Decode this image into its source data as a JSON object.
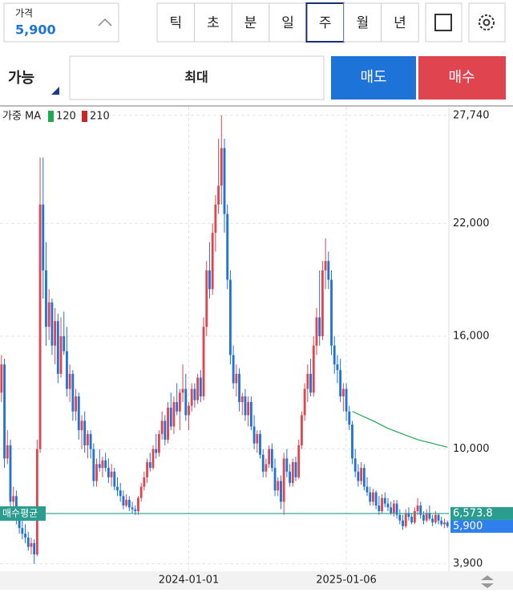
{
  "header": {
    "price_label": "가격",
    "price": "5,900",
    "periods": [
      "틱",
      "초",
      "분",
      "일",
      "주",
      "월",
      "년"
    ],
    "selected_period_index": 4
  },
  "order_bar": {
    "available": "가능",
    "quantity": "최대",
    "sell": "매도",
    "buy": "매수"
  },
  "chart_data": {
    "type": "candlestick",
    "legend_title": "가중 MA",
    "candle_colors": {
      "up": "#e0454f",
      "down": "#1e73d8"
    },
    "ohlc": [
      [
        13000,
        15000,
        12500,
        14500
      ],
      [
        14500,
        14800,
        9000,
        9500
      ],
      [
        9500,
        11000,
        9200,
        10200
      ],
      [
        10200,
        10500,
        6800,
        7200
      ],
      [
        7200,
        8000,
        6500,
        7500
      ],
      [
        7500,
        7800,
        6000,
        6300
      ],
      [
        6300,
        6800,
        5500,
        5800
      ],
      [
        5800,
        6200,
        5200,
        5500
      ],
      [
        5500,
        6000,
        5000,
        5300
      ],
      [
        5300,
        5600,
        4600,
        4800
      ],
      [
        4800,
        5300,
        4400,
        5000
      ],
      [
        5000,
        5200,
        3900,
        4400
      ],
      [
        4400,
        10500,
        4300,
        10000
      ],
      [
        10000,
        25500,
        9800,
        23000
      ],
      [
        23000,
        25500,
        18000,
        19500
      ],
      [
        19500,
        21000,
        15500,
        16500
      ],
      [
        16500,
        18500,
        15800,
        17800
      ],
      [
        17800,
        18000,
        15000,
        15500
      ],
      [
        15500,
        17500,
        14500,
        16800
      ],
      [
        16800,
        17200,
        13500,
        14000
      ],
      [
        14000,
        17000,
        13800,
        16000
      ],
      [
        16000,
        17300,
        15000,
        15200
      ],
      [
        15200,
        16500,
        12800,
        13200
      ],
      [
        13200,
        14500,
        12500,
        14000
      ],
      [
        14000,
        14200,
        11500,
        12000
      ],
      [
        12000,
        13200,
        11500,
        12800
      ],
      [
        12800,
        13000,
        10500,
        11000
      ],
      [
        11000,
        11800,
        10000,
        11500
      ],
      [
        11500,
        12000,
        9800,
        10200
      ],
      [
        10200,
        11000,
        9500,
        10800
      ],
      [
        10800,
        11000,
        9500,
        10000
      ],
      [
        10000,
        10300,
        8000,
        8300
      ],
      [
        8300,
        9500,
        8000,
        9200
      ],
      [
        9200,
        10000,
        8800,
        9000
      ],
      [
        9000,
        9600,
        8500,
        9400
      ],
      [
        9400,
        9800,
        8800,
        9000
      ],
      [
        9000,
        9500,
        8200,
        8500
      ],
      [
        8500,
        9200,
        8000,
        8800
      ],
      [
        8800,
        9000,
        7800,
        8000
      ],
      [
        8000,
        8500,
        7500,
        7800
      ],
      [
        7800,
        8200,
        7200,
        7500
      ],
      [
        7500,
        7800,
        6800,
        7000
      ],
      [
        7000,
        7600,
        6900,
        7300
      ],
      [
        7300,
        7500,
        6700,
        6900
      ],
      [
        6900,
        7200,
        6600,
        6800
      ],
      [
        6800,
        7000,
        6500,
        6700
      ],
      [
        6700,
        7500,
        6500,
        7400
      ],
      [
        7400,
        8200,
        7200,
        8000
      ],
      [
        8000,
        8800,
        7800,
        8500
      ],
      [
        8500,
        9500,
        8200,
        9300
      ],
      [
        9300,
        9800,
        8800,
        9000
      ],
      [
        9000,
        10200,
        8900,
        10000
      ],
      [
        10000,
        10800,
        9500,
        9800
      ],
      [
        9800,
        11000,
        9600,
        10800
      ],
      [
        10800,
        12000,
        10500,
        11500
      ],
      [
        11500,
        11800,
        10200,
        10500
      ],
      [
        10500,
        12500,
        10300,
        12200
      ],
      [
        12200,
        13000,
        11000,
        11200
      ],
      [
        11200,
        12800,
        10800,
        12500
      ],
      [
        12500,
        13500,
        11800,
        12000
      ],
      [
        12000,
        13200,
        11000,
        13000
      ],
      [
        13000,
        14500,
        12500,
        13200
      ],
      [
        13200,
        14000,
        11500,
        11800
      ],
      [
        11800,
        12500,
        11000,
        12300
      ],
      [
        12300,
        13500,
        12000,
        13200
      ],
      [
        13200,
        13500,
        12200,
        12600
      ],
      [
        12600,
        14000,
        12400,
        13800
      ],
      [
        13800,
        14200,
        12500,
        12800
      ],
      [
        12800,
        17000,
        12600,
        16500
      ],
      [
        16500,
        20000,
        16000,
        19500
      ],
      [
        19500,
        21000,
        18000,
        18500
      ],
      [
        18500,
        22000,
        18200,
        21500
      ],
      [
        21500,
        23500,
        20500,
        23000
      ],
      [
        23000,
        26500,
        22500,
        24000
      ],
      [
        24000,
        27740,
        23000,
        26000
      ],
      [
        26000,
        26500,
        21500,
        22500
      ],
      [
        22500,
        23000,
        18500,
        19000
      ],
      [
        19000,
        19500,
        14500,
        15000
      ],
      [
        15000,
        15500,
        13200,
        13500
      ],
      [
        13500,
        14500,
        12800,
        14000
      ],
      [
        14000,
        14300,
        12000,
        12500
      ],
      [
        12500,
        13000,
        11800,
        12800
      ],
      [
        12800,
        13200,
        11500,
        11800
      ],
      [
        11800,
        12800,
        11200,
        12500
      ],
      [
        12500,
        12800,
        11000,
        11200
      ],
      [
        11200,
        11800,
        10000,
        10300
      ],
      [
        10300,
        11000,
        9800,
        10800
      ],
      [
        10800,
        11000,
        9500,
        9700
      ],
      [
        9700,
        10000,
        8500,
        8800
      ],
      [
        8800,
        9500,
        8500,
        9200
      ],
      [
        9200,
        10200,
        9000,
        10000
      ],
      [
        10000,
        10300,
        8800,
        9000
      ],
      [
        9000,
        9500,
        7500,
        7800
      ],
      [
        7800,
        8500,
        7500,
        8300
      ],
      [
        8300,
        8600,
        6800,
        7200
      ],
      [
        7200,
        9800,
        6500,
        9500
      ],
      [
        9500,
        10000,
        8500,
        8800
      ],
      [
        8800,
        9200,
        8000,
        8200
      ],
      [
        8200,
        9500,
        8000,
        9300
      ],
      [
        9300,
        9600,
        8300,
        8500
      ],
      [
        8500,
        10500,
        8400,
        10200
      ],
      [
        10200,
        12000,
        10000,
        11800
      ],
      [
        11800,
        13500,
        11500,
        13200
      ],
      [
        13200,
        14500,
        12500,
        14000
      ],
      [
        14000,
        14800,
        12800,
        13000
      ],
      [
        13000,
        16000,
        12800,
        15500
      ],
      [
        15500,
        17500,
        15000,
        17000
      ],
      [
        17000,
        19500,
        15500,
        16000
      ],
      [
        16000,
        20000,
        15800,
        19500
      ],
      [
        19500,
        21200,
        18500,
        20000
      ],
      [
        20000,
        20500,
        18500,
        19000
      ],
      [
        19000,
        19500,
        15000,
        15500
      ],
      [
        15500,
        16000,
        14000,
        14500
      ],
      [
        14500,
        15000,
        13500,
        14200
      ],
      [
        14200,
        14800,
        12500,
        12800
      ],
      [
        12800,
        13500,
        12000,
        13200
      ],
      [
        13200,
        13500,
        11500,
        12000
      ],
      [
        12000,
        12300,
        11000,
        11300
      ],
      [
        11300,
        11500,
        9200,
        9500
      ],
      [
        9500,
        10000,
        8500,
        8800
      ],
      [
        8800,
        9200,
        8000,
        8300
      ],
      [
        8300,
        9300,
        8100,
        9000
      ],
      [
        9000,
        9200,
        7800,
        8000
      ],
      [
        8000,
        8500,
        7500,
        7700
      ],
      [
        7700,
        8000,
        7000,
        7200
      ],
      [
        7200,
        7900,
        7000,
        7700
      ],
      [
        7700,
        7800,
        6800,
        7000
      ],
      [
        7000,
        7500,
        6500,
        6700
      ],
      [
        6700,
        7600,
        6600,
        7400
      ],
      [
        7400,
        7700,
        6900,
        7100
      ],
      [
        7100,
        7400,
        6700,
        6900
      ],
      [
        6900,
        7200,
        6500,
        6600
      ],
      [
        6600,
        7300,
        6400,
        7100
      ],
      [
        7100,
        7300,
        6300,
        6500
      ],
      [
        6500,
        6800,
        6000,
        6200
      ],
      [
        6200,
        6500,
        5700,
        5900
      ],
      [
        5900,
        6800,
        5800,
        6600
      ],
      [
        6600,
        6900,
        6200,
        6400
      ],
      [
        6400,
        6600,
        6000,
        6100
      ],
      [
        6100,
        6900,
        6000,
        6700
      ],
      [
        6700,
        7400,
        6500,
        7000
      ],
      [
        7000,
        7200,
        6300,
        6500
      ],
      [
        6500,
        6700,
        6000,
        6200
      ],
      [
        6200,
        6800,
        6100,
        6600
      ],
      [
        6600,
        7000,
        6200,
        6300
      ],
      [
        6300,
        6500,
        5900,
        6100
      ],
      [
        6100,
        6700,
        6000,
        6500
      ],
      [
        6500,
        6600,
        6000,
        6200
      ],
      [
        6200,
        6400,
        5900,
        6000
      ],
      [
        6000,
        6300,
        5800,
        6100
      ],
      [
        6100,
        6200,
        5800,
        5900
      ]
    ],
    "ma_series": [
      {
        "name": "120",
        "color": "#1fa84f",
        "x": [
          118,
          125,
          130,
          135,
          140,
          145,
          150
        ],
        "values": [
          12000,
          11500,
          11100,
          10800,
          10500,
          10300,
          10100
        ]
      },
      {
        "name": "210",
        "color": "#c62828"
      }
    ],
    "ylim": [
      3500,
      28200
    ],
    "yticks": [
      {
        "value": 3900,
        "label": "3,900"
      },
      {
        "value": 10000,
        "label": "10,000"
      },
      {
        "value": 16000,
        "label": "16,000"
      },
      {
        "value": 22000,
        "label": "22,000"
      },
      {
        "value": 27740,
        "label": "27,740"
      }
    ],
    "xticks": [
      {
        "value": 63,
        "label": "2024-01-01"
      },
      {
        "value": 116,
        "label": "2025-01-06"
      }
    ],
    "grid": true,
    "avg_line": {
      "label": "매수평균",
      "value": 6573.8,
      "value_label": "6,573.8",
      "color": "#2a9d8f"
    },
    "current_price": {
      "value": 5900,
      "value_label": "5,900",
      "color": "#2f80ed"
    }
  }
}
